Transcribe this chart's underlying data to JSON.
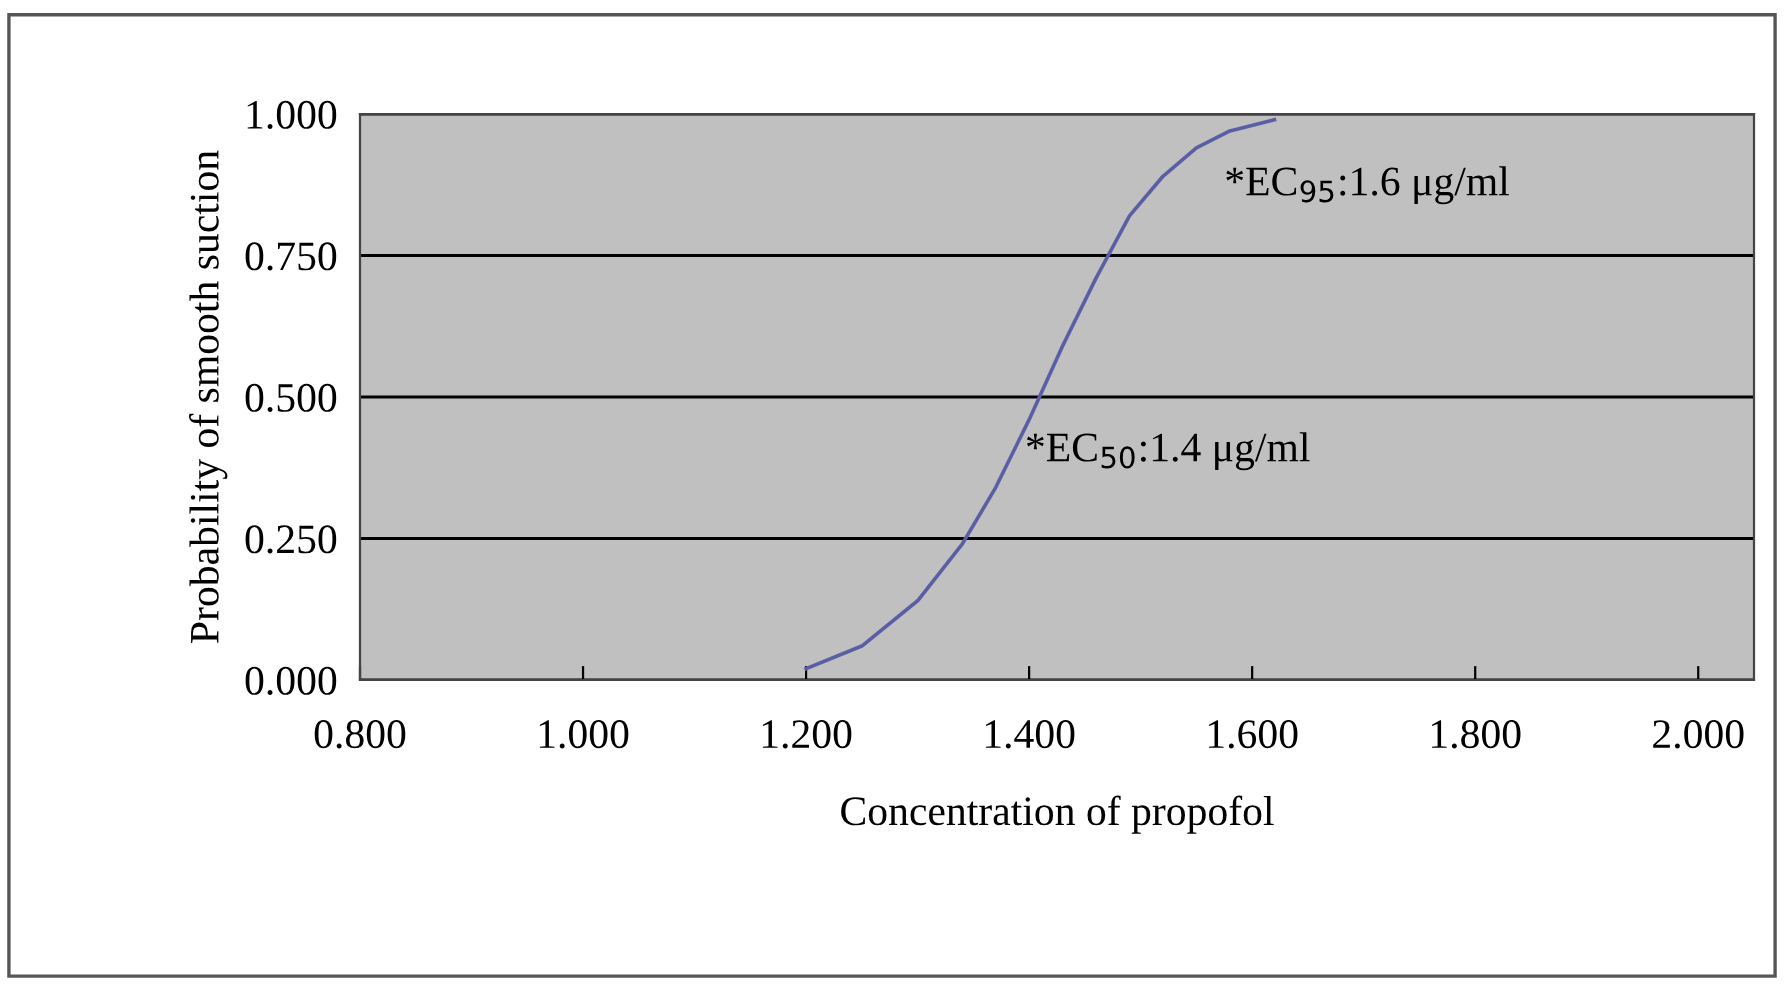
{
  "chart_data": {
    "type": "line",
    "xlabel": "Concentration of propofol",
    "ylabel": "Probability of smooth suction",
    "series": [
      {
        "color": "#5a5fa5",
        "x": [
          1.2,
          1.25,
          1.3,
          1.34,
          1.37,
          1.4,
          1.43,
          1.46,
          1.49,
          1.52,
          1.55,
          1.58,
          1.62
        ],
        "values": [
          0.02,
          0.06,
          0.14,
          0.24,
          0.34,
          0.46,
          0.59,
          0.71,
          0.82,
          0.89,
          0.94,
          0.97,
          0.99
        ]
      }
    ],
    "xlim": [
      0.8,
      2.05
    ],
    "xticks": [
      {
        "value": 0.8,
        "label": "0.800"
      },
      {
        "value": 1.0,
        "label": "1.000"
      },
      {
        "value": 1.2,
        "label": "1.200"
      },
      {
        "value": 1.4,
        "label": "1.400"
      },
      {
        "value": 1.6,
        "label": "1.600"
      },
      {
        "value": 1.8,
        "label": "1.800"
      },
      {
        "value": 2.0,
        "label": "2.000"
      }
    ],
    "ylim": [
      0,
      1
    ],
    "yticks": [
      {
        "value": 0,
        "label": "0.000"
      },
      {
        "value": 0.25,
        "label": "0.250"
      },
      {
        "value": 0.5,
        "label": "0.500"
      },
      {
        "value": 0.75,
        "label": "0.750"
      },
      {
        "value": 1.0,
        "label": "1.000"
      }
    ],
    "annotations": [
      "*EC$_{50}$:1.4 μg/ml",
      "*EC$_{95}$:1.6 μg/ml"
    ],
    "grid": "y",
    "marker": "none",
    "line_style": "solid"
  }
}
